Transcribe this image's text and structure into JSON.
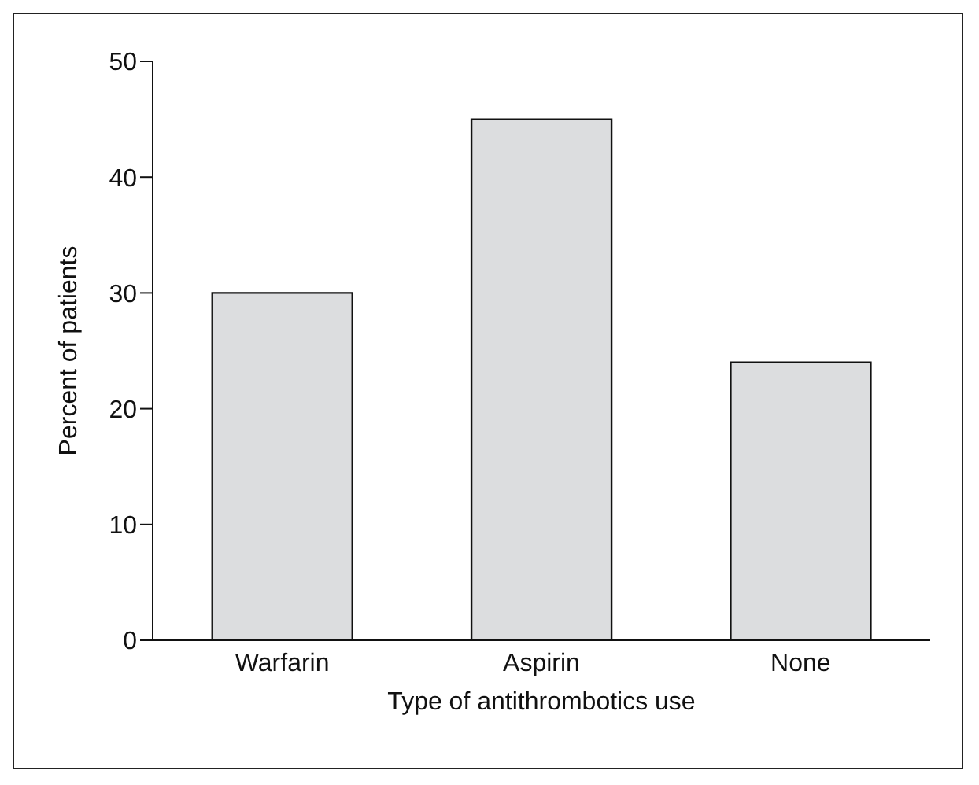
{
  "chart_data": {
    "type": "bar",
    "xlabel": "Type of antithrombotics use",
    "ylabel": "Percent of patients",
    "categories": [
      "Warfarin",
      "Aspirin",
      "None"
    ],
    "values": [
      30,
      45,
      24
    ],
    "color": "#dcdddf",
    "ylim": [
      0,
      50
    ],
    "yticks": [
      0,
      10,
      20,
      30,
      40,
      50
    ],
    "grid": false,
    "legend": false
  }
}
